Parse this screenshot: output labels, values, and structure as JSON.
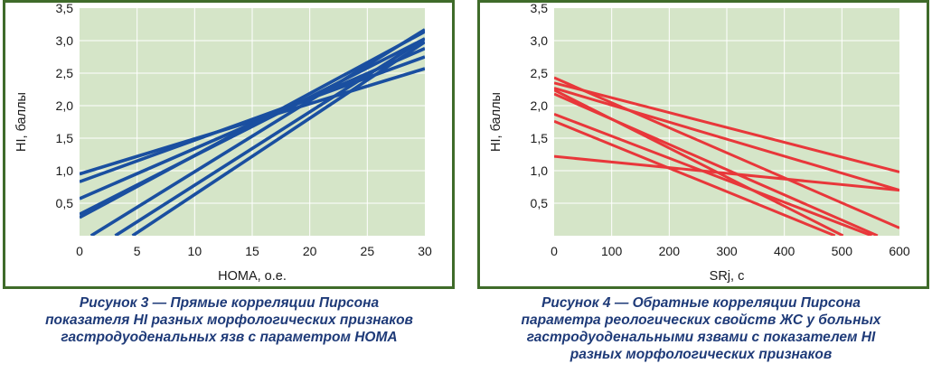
{
  "chart_data": [
    {
      "type": "line",
      "xlabel": "HOMA, о.е.",
      "ylabel": "HI, баллы",
      "xlim": [
        0,
        30
      ],
      "ylim": [
        0,
        3.5
      ],
      "xticks": [
        "0",
        "5",
        "10",
        "15",
        "20",
        "25",
        "30"
      ],
      "yticks": [
        "0,5",
        "1,0",
        "1,5",
        "2,0",
        "2,5",
        "3,0",
        "3,5"
      ],
      "grid": true,
      "line_color": "#1a4fa0",
      "background_color": "#d5e5c8",
      "series": [
        {
          "x": [
            0,
            30
          ],
          "y": [
            0.95,
            2.57
          ]
        },
        {
          "x": [
            0,
            30
          ],
          "y": [
            0.83,
            2.75
          ]
        },
        {
          "x": [
            0,
            30
          ],
          "y": [
            0.57,
            2.88
          ]
        },
        {
          "x": [
            0,
            30
          ],
          "y": [
            0.33,
            3.03
          ]
        },
        {
          "x": [
            0,
            30
          ],
          "y": [
            0.28,
            3.14
          ]
        },
        {
          "x": [
            1.0,
            30
          ],
          "y": [
            0.0,
            3.17
          ]
        },
        {
          "x": [
            3.1,
            30
          ],
          "y": [
            0.0,
            3.03
          ]
        },
        {
          "x": [
            4.6,
            30
          ],
          "y": [
            0.0,
            2.98
          ]
        }
      ]
    },
    {
      "type": "line",
      "xlabel": "SRj, с",
      "ylabel": "HI, баллы",
      "xlim": [
        0,
        600
      ],
      "ylim": [
        0,
        3.5
      ],
      "xticks": [
        "0",
        "100",
        "200",
        "300",
        "400",
        "500",
        "600"
      ],
      "yticks": [
        "0,5",
        "1,0",
        "1,5",
        "2,0",
        "2,5",
        "3,0",
        "3,5"
      ],
      "grid": true,
      "line_color": "#e8373a",
      "background_color": "#d5e5c8",
      "series": [
        {
          "x": [
            0,
            600
          ],
          "y": [
            2.35,
            0.98
          ]
        },
        {
          "x": [
            0,
            600
          ],
          "y": [
            2.27,
            0.7
          ]
        },
        {
          "x": [
            0,
            600
          ],
          "y": [
            2.43,
            0.12
          ]
        },
        {
          "x": [
            0,
            600
          ],
          "y": [
            1.22,
            0.7
          ]
        },
        {
          "x": [
            0,
            562
          ],
          "y": [
            2.18,
            0.0
          ]
        },
        {
          "x": [
            0,
            552
          ],
          "y": [
            1.87,
            0.0
          ]
        },
        {
          "x": [
            0,
            502
          ],
          "y": [
            2.24,
            0.0
          ]
        },
        {
          "x": [
            0,
            488
          ],
          "y": [
            1.76,
            0.0
          ]
        }
      ]
    }
  ],
  "captions": {
    "left": [
      "Рисунок 3 — Прямые корреляции Пирсона",
      "показателя HI разных морфологических признаков",
      "гастродуоденальных язв с параметром HOMA"
    ],
    "right": [
      "Рисунок 4 — Обратные корреляции Пирсона",
      "параметра реологических свойств ЖС у больных",
      "гастродуоденальными язвами с показателем HI",
      "разных морфологических признаков"
    ]
  }
}
